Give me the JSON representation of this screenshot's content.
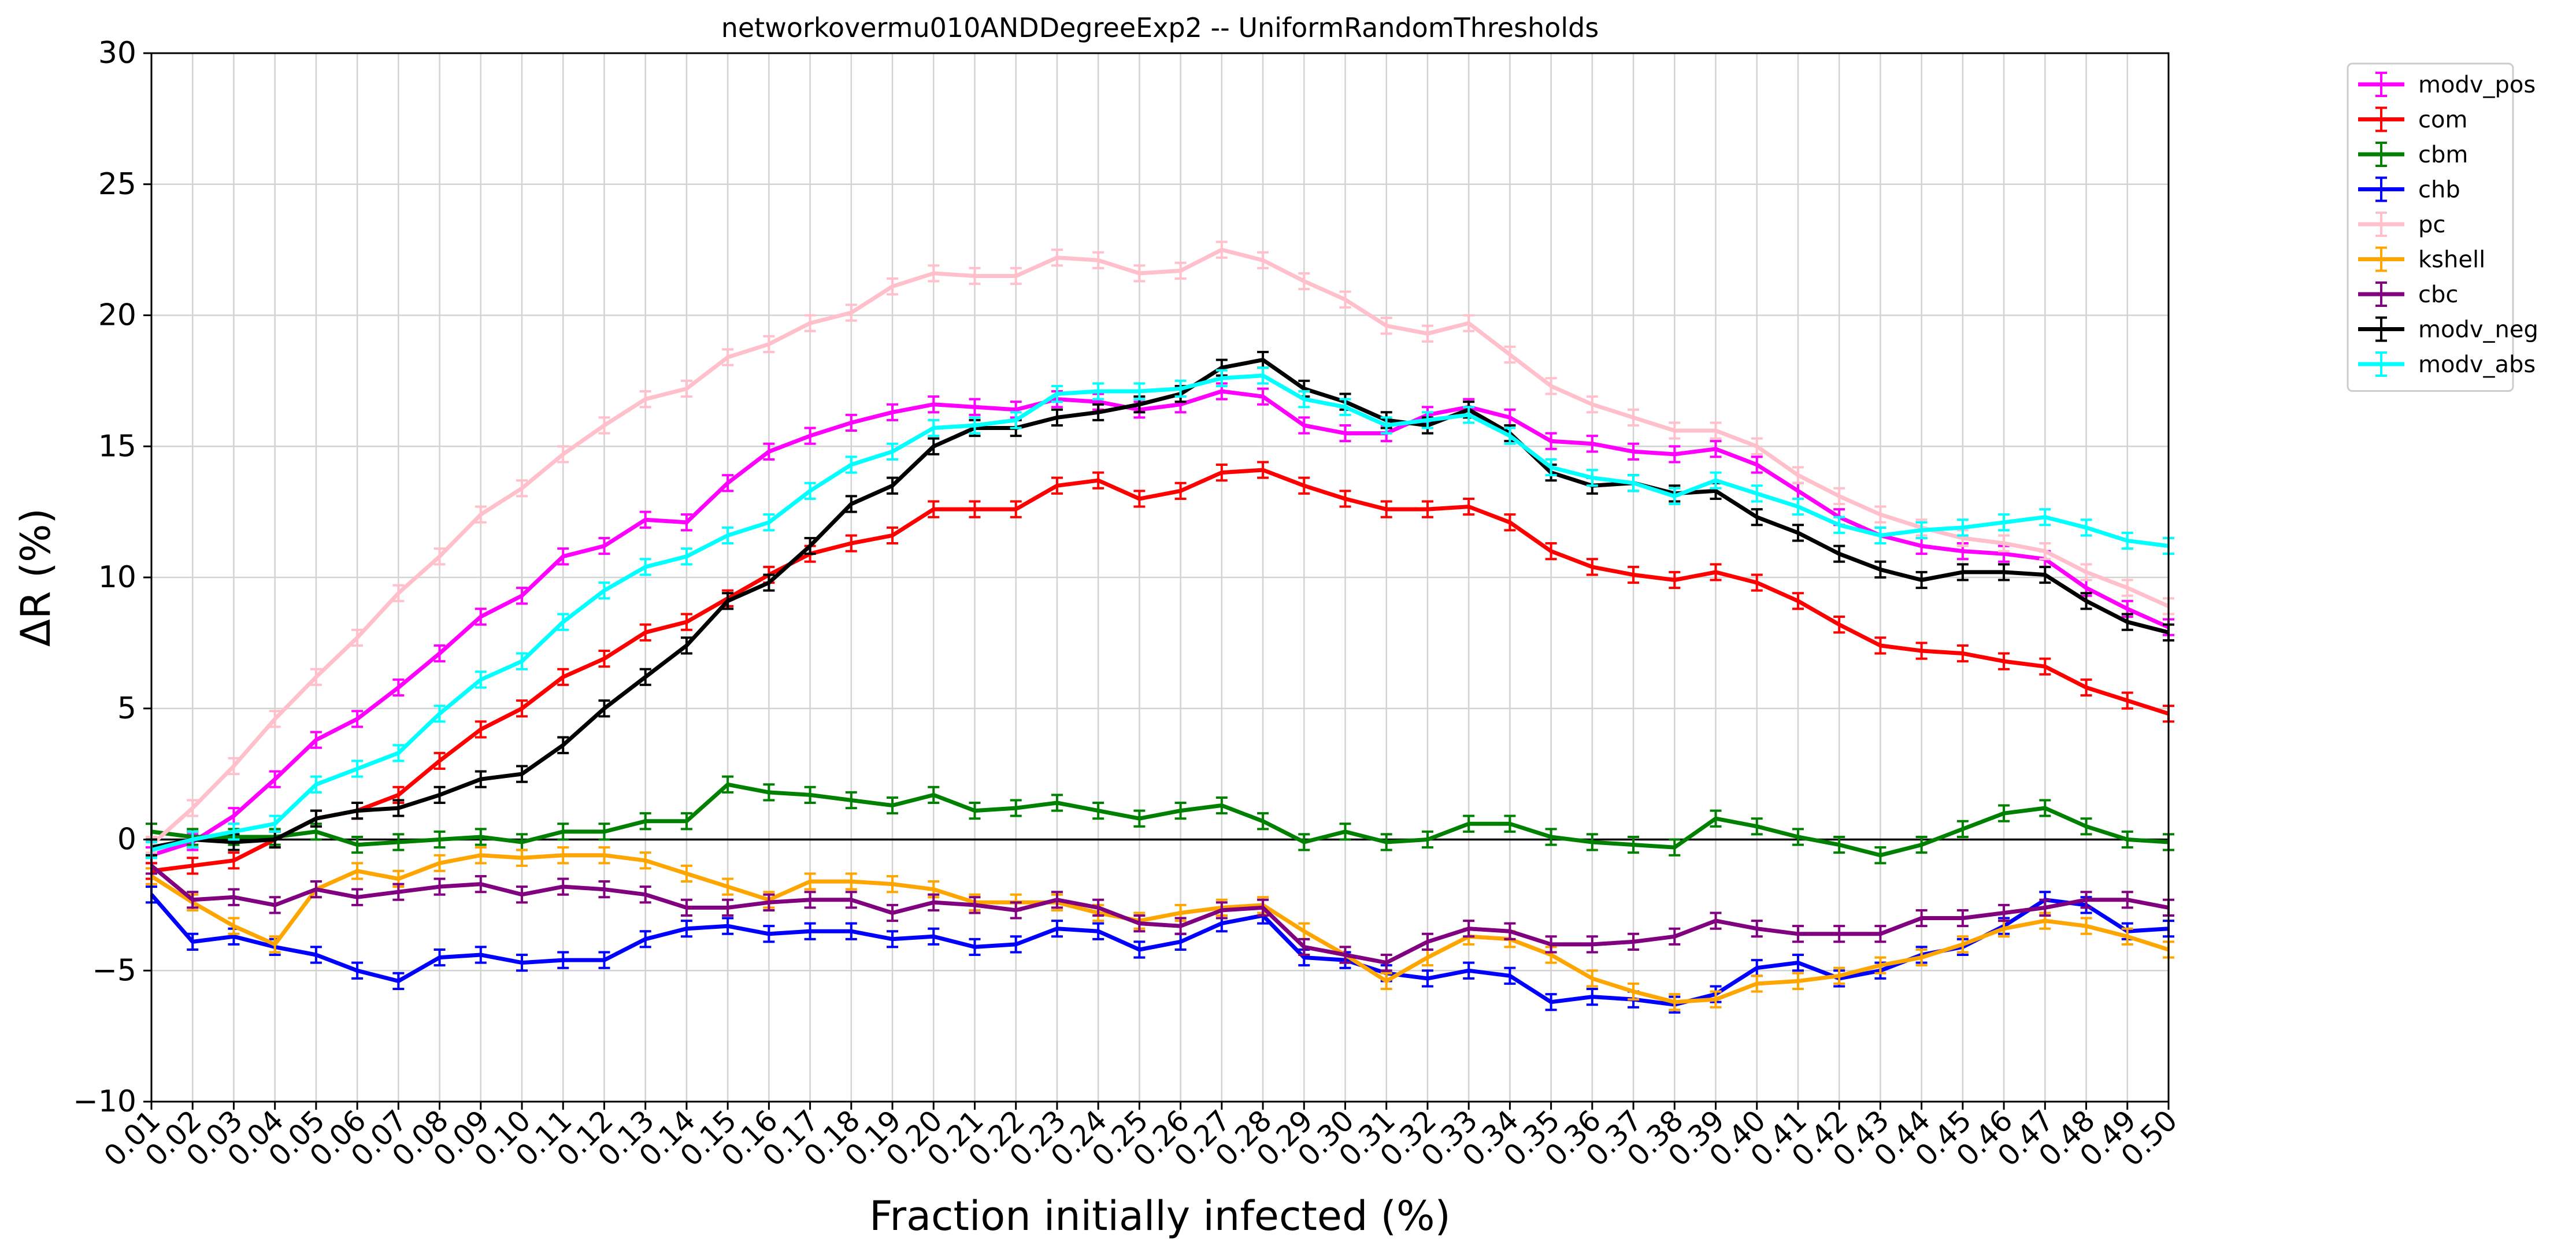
{
  "chart_data": {
    "type": "line",
    "title": "networkovermu010ANDDegreeExp2 -- UniformRandomThresholds",
    "xlabel": "Fraction initially infected (%)",
    "ylabel": "ΔR (%)",
    "ylim": [
      -10,
      30
    ],
    "yticks": [
      -10,
      -5,
      0,
      5,
      10,
      15,
      20,
      25,
      30
    ],
    "grid": true,
    "legend_position": "outside-right-top",
    "zero_line": true,
    "error_bars": true,
    "x": [
      "0.01",
      "0.02",
      "0.03",
      "0.04",
      "0.05",
      "0.06",
      "0.07",
      "0.08",
      "0.09",
      "0.10",
      "0.11",
      "0.12",
      "0.13",
      "0.14",
      "0.15",
      "0.16",
      "0.17",
      "0.18",
      "0.19",
      "0.20",
      "0.21",
      "0.22",
      "0.23",
      "0.24",
      "0.25",
      "0.26",
      "0.27",
      "0.28",
      "0.29",
      "0.30",
      "0.31",
      "0.32",
      "0.33",
      "0.34",
      "0.35",
      "0.36",
      "0.37",
      "0.38",
      "0.39",
      "0.40",
      "0.41",
      "0.42",
      "0.43",
      "0.44",
      "0.45",
      "0.46",
      "0.47",
      "0.48",
      "0.49",
      "0.50"
    ],
    "series": [
      {
        "name": "modv_pos",
        "color": "#ff00ff",
        "values": [
          -0.6,
          -0.1,
          0.9,
          2.3,
          3.8,
          4.6,
          5.8,
          7.1,
          8.5,
          9.3,
          10.8,
          11.2,
          12.2,
          12.1,
          13.6,
          14.8,
          15.4,
          15.9,
          16.3,
          16.6,
          16.5,
          16.4,
          16.8,
          16.7,
          16.4,
          16.6,
          17.1,
          16.9,
          15.8,
          15.5,
          15.5,
          16.2,
          16.5,
          16.1,
          15.2,
          15.1,
          14.8,
          14.7,
          14.9,
          14.3,
          13.3,
          12.3,
          11.6,
          11.2,
          11.0,
          10.9,
          10.7,
          9.6,
          8.8,
          8.1
        ]
      },
      {
        "name": "com",
        "color": "#ff0000",
        "values": [
          -1.2,
          -1.0,
          -0.8,
          0.0,
          0.8,
          1.1,
          1.7,
          3.0,
          4.2,
          5.0,
          6.2,
          6.9,
          7.9,
          8.3,
          9.2,
          10.1,
          10.9,
          11.3,
          11.6,
          12.6,
          12.6,
          12.6,
          13.5,
          13.7,
          13.0,
          13.3,
          14.0,
          14.1,
          13.5,
          13.0,
          12.6,
          12.6,
          12.7,
          12.1,
          11.0,
          10.4,
          10.1,
          9.9,
          10.2,
          9.8,
          9.1,
          8.2,
          7.4,
          7.2,
          7.1,
          6.8,
          6.6,
          5.8,
          5.3,
          4.8
        ]
      },
      {
        "name": "cbm",
        "color": "#008000",
        "values": [
          0.3,
          0.1,
          0.1,
          0.1,
          0.3,
          -0.2,
          -0.1,
          0.0,
          0.1,
          -0.1,
          0.3,
          0.3,
          0.7,
          0.7,
          2.1,
          1.8,
          1.7,
          1.5,
          1.3,
          1.7,
          1.1,
          1.2,
          1.4,
          1.1,
          0.8,
          1.1,
          1.3,
          0.7,
          -0.1,
          0.3,
          -0.1,
          0.0,
          0.6,
          0.6,
          0.1,
          -0.1,
          -0.2,
          -0.3,
          0.8,
          0.5,
          0.1,
          -0.2,
          -0.6,
          -0.2,
          0.4,
          1.0,
          1.2,
          0.5,
          0.0,
          -0.1
        ]
      },
      {
        "name": "chb",
        "color": "#0000ff",
        "values": [
          -2.1,
          -3.9,
          -3.7,
          -4.1,
          -4.4,
          -5.0,
          -5.4,
          -4.5,
          -4.4,
          -4.7,
          -4.6,
          -4.6,
          -3.8,
          -3.4,
          -3.3,
          -3.6,
          -3.5,
          -3.5,
          -3.8,
          -3.7,
          -4.1,
          -4.0,
          -3.4,
          -3.5,
          -4.2,
          -3.9,
          -3.2,
          -2.9,
          -4.5,
          -4.6,
          -5.1,
          -5.3,
          -5.0,
          -5.2,
          -6.2,
          -6.0,
          -6.1,
          -6.3,
          -5.9,
          -4.9,
          -4.7,
          -5.3,
          -5.0,
          -4.4,
          -4.1,
          -3.3,
          -2.3,
          -2.5,
          -3.5,
          -3.4
        ]
      },
      {
        "name": "pc",
        "color": "#ffc0cb",
        "values": [
          -0.2,
          1.2,
          2.8,
          4.6,
          6.2,
          7.7,
          9.4,
          10.8,
          12.4,
          13.4,
          14.7,
          15.8,
          16.8,
          17.2,
          18.4,
          18.9,
          19.7,
          20.1,
          21.1,
          21.6,
          21.5,
          21.5,
          22.2,
          22.1,
          21.6,
          21.7,
          22.5,
          22.1,
          21.3,
          20.6,
          19.6,
          19.3,
          19.7,
          18.5,
          17.3,
          16.6,
          16.1,
          15.6,
          15.6,
          15.0,
          13.9,
          13.1,
          12.4,
          11.9,
          11.5,
          11.3,
          11.0,
          10.2,
          9.6,
          8.9
        ]
      },
      {
        "name": "kshell",
        "color": "#ffa500",
        "values": [
          -1.4,
          -2.4,
          -3.3,
          -4.0,
          -1.9,
          -1.2,
          -1.5,
          -0.9,
          -0.6,
          -0.7,
          -0.6,
          -0.6,
          -0.8,
          -1.3,
          -1.8,
          -2.3,
          -1.6,
          -1.6,
          -1.7,
          -1.9,
          -2.4,
          -2.4,
          -2.4,
          -2.8,
          -3.1,
          -2.8,
          -2.6,
          -2.5,
          -3.5,
          -4.4,
          -5.4,
          -4.5,
          -3.7,
          -3.8,
          -4.4,
          -5.3,
          -5.8,
          -6.2,
          -6.1,
          -5.5,
          -5.4,
          -5.2,
          -4.8,
          -4.5,
          -4.0,
          -3.4,
          -3.1,
          -3.3,
          -3.7,
          -4.2
        ]
      },
      {
        "name": "cbc",
        "color": "#800080",
        "values": [
          -1.0,
          -2.3,
          -2.2,
          -2.5,
          -1.9,
          -2.2,
          -2.0,
          -1.8,
          -1.7,
          -2.1,
          -1.8,
          -1.9,
          -2.1,
          -2.6,
          -2.6,
          -2.4,
          -2.3,
          -2.3,
          -2.8,
          -2.4,
          -2.5,
          -2.7,
          -2.3,
          -2.6,
          -3.2,
          -3.3,
          -2.7,
          -2.6,
          -4.1,
          -4.4,
          -4.7,
          -3.9,
          -3.4,
          -3.5,
          -4.0,
          -4.0,
          -3.9,
          -3.7,
          -3.1,
          -3.4,
          -3.6,
          -3.6,
          -3.6,
          -3.0,
          -3.0,
          -2.8,
          -2.6,
          -2.3,
          -2.3,
          -2.6
        ]
      },
      {
        "name": "modv_neg",
        "color": "#000000",
        "values": [
          -0.3,
          0.0,
          -0.1,
          0.0,
          0.8,
          1.1,
          1.2,
          1.7,
          2.3,
          2.5,
          3.6,
          5.0,
          6.2,
          7.4,
          9.1,
          9.8,
          11.2,
          12.8,
          13.5,
          15.0,
          15.7,
          15.7,
          16.1,
          16.3,
          16.6,
          17.0,
          18.0,
          18.3,
          17.2,
          16.7,
          16.0,
          15.8,
          16.4,
          15.5,
          14.0,
          13.5,
          13.6,
          13.2,
          13.3,
          12.3,
          11.7,
          10.9,
          10.3,
          9.9,
          10.2,
          10.2,
          10.1,
          9.1,
          8.3,
          7.9
        ]
      },
      {
        "name": "modv_abs",
        "color": "#00ffff",
        "values": [
          -0.4,
          0.0,
          0.3,
          0.6,
          2.1,
          2.7,
          3.3,
          4.8,
          6.1,
          6.8,
          8.3,
          9.5,
          10.4,
          10.8,
          11.6,
          12.1,
          13.3,
          14.3,
          14.8,
          15.7,
          15.8,
          16.0,
          17.0,
          17.1,
          17.1,
          17.2,
          17.6,
          17.7,
          16.8,
          16.5,
          15.8,
          16.0,
          16.2,
          15.4,
          14.2,
          13.8,
          13.6,
          13.1,
          13.7,
          13.2,
          12.7,
          12.0,
          11.6,
          11.8,
          11.9,
          12.1,
          12.3,
          11.9,
          11.4,
          11.2
        ]
      }
    ]
  }
}
